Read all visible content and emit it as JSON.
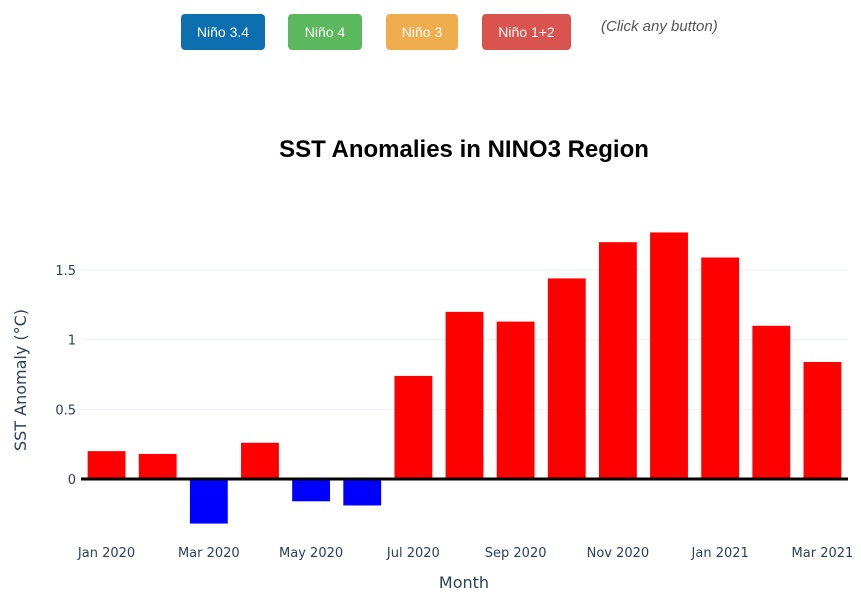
{
  "buttons": [
    {
      "label": "Niño 3.4",
      "color": "#0d6eb0"
    },
    {
      "label": "Niño 4",
      "color": "#5cb85c"
    },
    {
      "label": "Niño 3",
      "color": "#f0ad4e"
    },
    {
      "label": "Niño 1+2",
      "color": "#d9534f"
    }
  ],
  "hint": "(Click any button)",
  "chart_data": {
    "type": "bar",
    "title": "SST Anomalies in NINO3 Region",
    "xlabel": "Month",
    "ylabel": "SST Anomaly (°C)",
    "categories": [
      "2020-01",
      "2020-02",
      "2020-03",
      "2020-04",
      "2020-05",
      "2020-06",
      "2020-07",
      "2020-08",
      "2020-09",
      "2020-10",
      "2020-11",
      "2020-12",
      "2021-01",
      "2021-02",
      "2021-03"
    ],
    "values": [
      0.2,
      0.18,
      -0.32,
      0.26,
      -0.16,
      -0.19,
      0.74,
      1.2,
      1.13,
      1.44,
      1.7,
      1.77,
      1.59,
      1.1,
      0.84
    ],
    "ylim": [
      -0.42,
      1.88
    ],
    "yticks": [
      0,
      0.5,
      1,
      1.5
    ],
    "ytick_labels": [
      "0",
      "0.5",
      "1",
      "1.5"
    ],
    "xtick_labels": [
      "Jan 2020",
      "Mar 2020",
      "May 2020",
      "Jul 2020",
      "Sep 2020",
      "Nov 2020",
      "Jan 2021",
      "Mar 2021"
    ],
    "positive_color": "#ff0000",
    "negative_color": "#0000ff",
    "zero_line": true,
    "grid": true,
    "legend": "none"
  }
}
